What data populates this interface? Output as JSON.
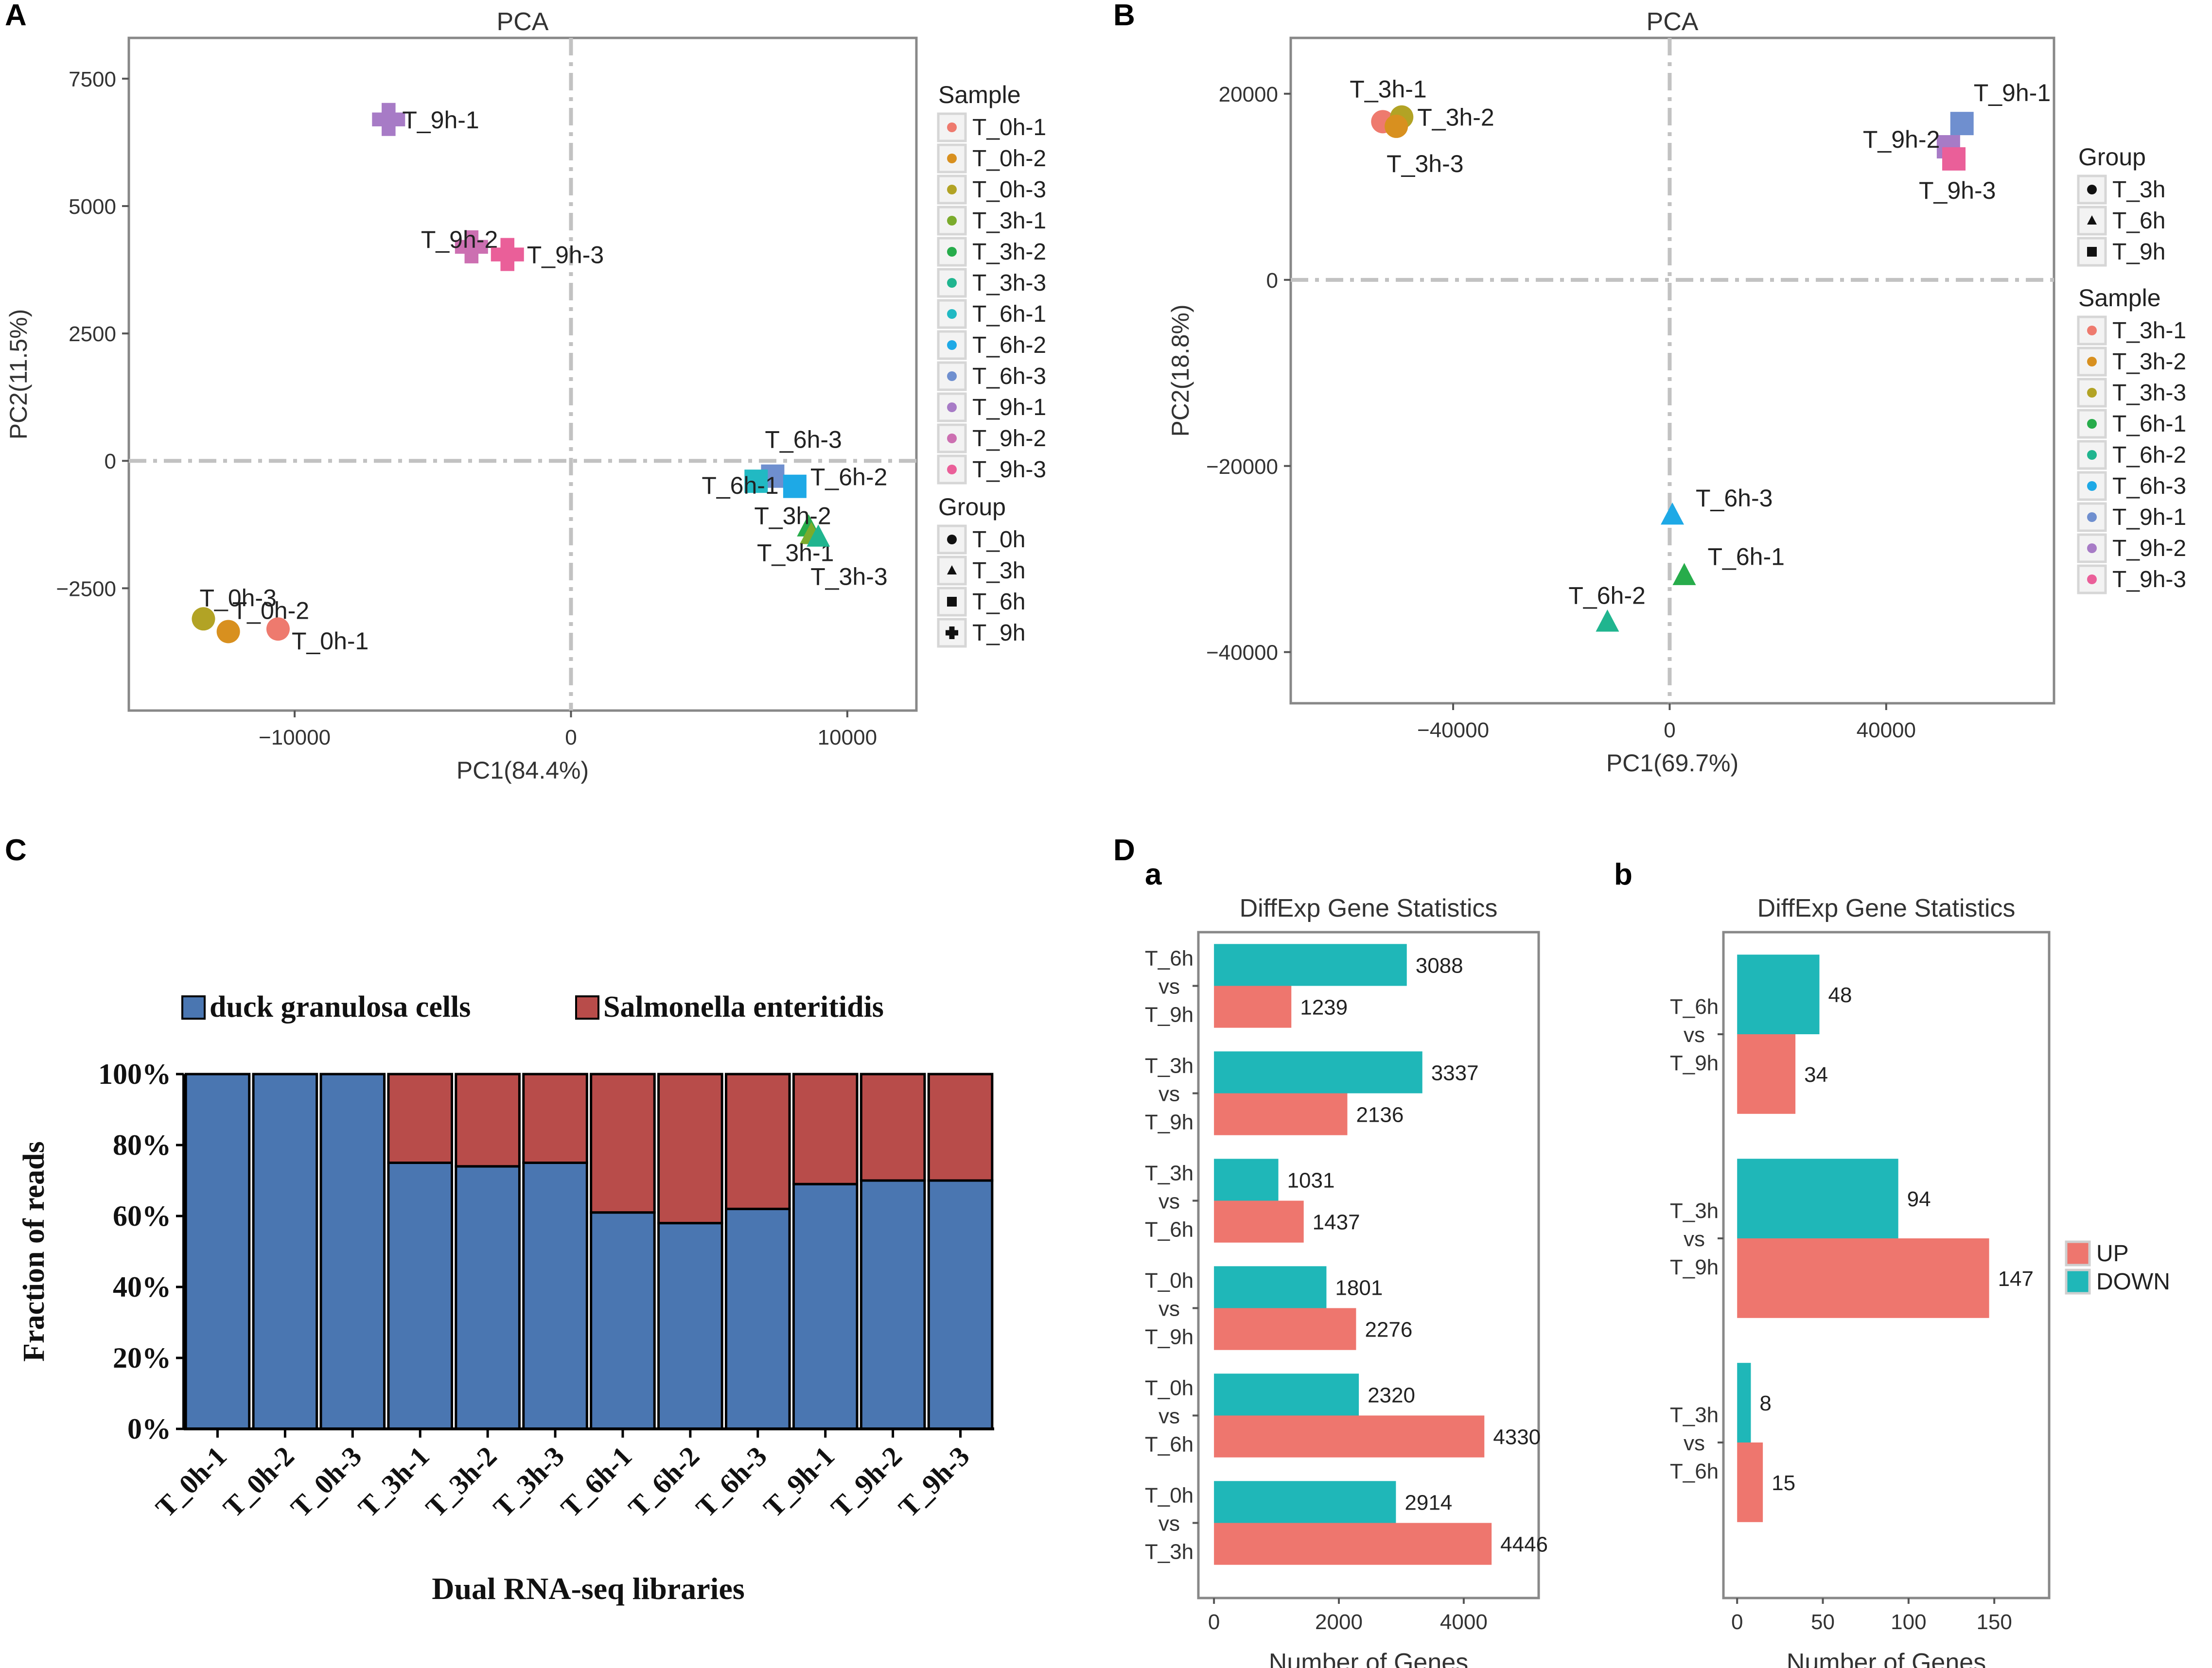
{
  "colors": {
    "T_0h-1": "#ee7a6e",
    "T_0h-2": "#d8901f",
    "T_0h-3": "#b2a325",
    "T_3h-1": "#7bab2c",
    "T_3h-2": "#27ac4b",
    "T_3h-3": "#20b58f",
    "T_6h-1": "#21b9c3",
    "T_6h-2": "#1ea9e6",
    "T_6h-3": "#6f8fcf",
    "T_9h-1": "#a77bc6",
    "T_9h-2": "#cc6fb1",
    "T_9h-3": "#ea5f99",
    "up": "#ee766e",
    "down": "#1fb7b8",
    "duck": "#4a76b1",
    "salmonella": "#b84c4a",
    "axis": "#888888",
    "refline": "#c2c2c2"
  },
  "chart_data": [
    {
      "panel": "A",
      "type": "scatter",
      "title": "PCA",
      "xlabel": "PC1(84.4%)",
      "ylabel": "PC2(11.5%)",
      "xlim": [
        -16000,
        12500
      ],
      "ylim": [
        -4900,
        8300
      ],
      "xticks": [
        -10000,
        0,
        10000
      ],
      "yticks": [
        -2500,
        0,
        2500,
        5000,
        7500
      ],
      "legend": {
        "sample_title": "Sample",
        "samples": [
          "T_0h-1",
          "T_0h-2",
          "T_0h-3",
          "T_3h-1",
          "T_3h-2",
          "T_3h-3",
          "T_6h-1",
          "T_6h-2",
          "T_6h-3",
          "T_9h-1",
          "T_9h-2",
          "T_9h-3"
        ],
        "group_title": "Group",
        "groups": [
          {
            "label": "T_0h",
            "shape": "circle"
          },
          {
            "label": "T_3h",
            "shape": "triangle"
          },
          {
            "label": "T_6h",
            "shape": "square"
          },
          {
            "label": "T_9h",
            "shape": "plus"
          }
        ]
      },
      "points": [
        {
          "label": "T_9h-1",
          "x": -6600,
          "y": 6700,
          "shape": "plus",
          "lx": 0.35,
          "ly": 0.0
        },
        {
          "label": "T_9h-2",
          "x": -3600,
          "y": 4200,
          "shape": "plus",
          "lx": -1.3,
          "ly": -0.2
        },
        {
          "label": "T_9h-3",
          "x": -2300,
          "y": 4050,
          "shape": "plus",
          "lx": 0.5,
          "ly": 0.0
        },
        {
          "label": "T_0h-3",
          "x": -13300,
          "y": -3100,
          "shape": "circle",
          "lx": -0.1,
          "ly": -0.55
        },
        {
          "label": "T_0h-2",
          "x": -12400,
          "y": -3350,
          "shape": "circle",
          "lx": 0.1,
          "ly": -0.55
        },
        {
          "label": "T_0h-1",
          "x": -10600,
          "y": -3300,
          "shape": "circle",
          "lx": 0.35,
          "ly": 0.3
        },
        {
          "label": "T_6h-3",
          "x": 7300,
          "y": -300,
          "shape": "square",
          "lx": -0.2,
          "ly": -0.95
        },
        {
          "label": "T_6h-1",
          "x": 6700,
          "y": -400,
          "shape": "square",
          "lx": -1.4,
          "ly": 0.1
        },
        {
          "label": "T_6h-2",
          "x": 8100,
          "y": -500,
          "shape": "square",
          "lx": 0.4,
          "ly": -0.25
        },
        {
          "label": "T_3h-2",
          "x": 8600,
          "y": -1300,
          "shape": "triangle",
          "lx": -1.4,
          "ly": -0.3
        },
        {
          "label": "T_3h-1",
          "x": 8700,
          "y": -1450,
          "shape": "triangle",
          "lx": -1.4,
          "ly": 0.45
        },
        {
          "label": "T_3h-3",
          "x": 8950,
          "y": -1500,
          "shape": "triangle",
          "lx": -0.2,
          "ly": 1.0
        }
      ]
    },
    {
      "panel": "B",
      "type": "scatter",
      "title": "PCA",
      "xlabel": "PC1(69.7%)",
      "ylabel": "PC2(18.8%)",
      "xlim": [
        -70000,
        71000
      ],
      "ylim": [
        -45500,
        26000
      ],
      "xticks": [
        -40000,
        0,
        40000
      ],
      "yticks": [
        -40000,
        -20000,
        0,
        20000
      ],
      "legend": {
        "group_title": "Group",
        "groups": [
          {
            "label": "T_3h",
            "shape": "circle"
          },
          {
            "label": "T_6h",
            "shape": "triangle"
          },
          {
            "label": "T_9h",
            "shape": "square"
          }
        ],
        "sample_title": "Sample",
        "samples": [
          "T_3h-1",
          "T_3h-2",
          "T_3h-3",
          "T_6h-1",
          "T_6h-2",
          "T_6h-3",
          "T_9h-1",
          "T_9h-2",
          "T_9h-3"
        ],
        "sample_color_keys": [
          "T_0h-1",
          "T_0h-2",
          "T_0h-3",
          "T_3h-2",
          "T_3h-3",
          "T_6h-2",
          "T_6h-3",
          "T_9h-1",
          "T_9h-3"
        ]
      },
      "points": [
        {
          "label": "T_3h-1",
          "x": -53000,
          "y": 17000,
          "shape": "circle",
          "color_key": "T_0h-1",
          "lx": -0.85,
          "ly": -0.85
        },
        {
          "label": "T_3h-2",
          "x": -49500,
          "y": 17500,
          "shape": "circle",
          "color_key": "T_0h-3",
          "lx": 0.4,
          "ly": 0.0
        },
        {
          "label": "T_3h-3",
          "x": -50500,
          "y": 16500,
          "shape": "circle",
          "color_key": "T_0h-2",
          "lx": -0.25,
          "ly": 0.95
        },
        {
          "label": "T_9h-1",
          "x": 54000,
          "y": 16800,
          "shape": "square",
          "color_key": "T_6h-3",
          "lx": 0.3,
          "ly": -0.8
        },
        {
          "label": "T_9h-2",
          "x": 51500,
          "y": 14300,
          "shape": "square",
          "color_key": "T_9h-1",
          "lx": -2.2,
          "ly": -0.2
        },
        {
          "label": "T_9h-3",
          "x": 52500,
          "y": 13000,
          "shape": "square",
          "color_key": "T_9h-3",
          "lx": -0.9,
          "ly": 0.8
        },
        {
          "label": "T_6h-3",
          "x": 500,
          "y": -25300,
          "shape": "triangle",
          "color_key": "T_6h-2",
          "lx": 0.6,
          "ly": -0.45
        },
        {
          "label": "T_6h-1",
          "x": 2700,
          "y": -31800,
          "shape": "triangle",
          "color_key": "T_3h-2",
          "lx": 0.6,
          "ly": -0.5
        },
        {
          "label": "T_6h-2",
          "x": -11500,
          "y": -36800,
          "shape": "triangle",
          "color_key": "T_3h-3",
          "lx": -1.0,
          "ly": -0.7
        }
      ]
    },
    {
      "panel": "C",
      "type": "bar",
      "stacked": true,
      "categories": [
        "T_0h-1",
        "T_0h-2",
        "T_0h-3",
        "T_3h-1",
        "T_3h-2",
        "T_3h-3",
        "T_6h-1",
        "T_6h-2",
        "T_6h-3",
        "T_9h-1",
        "T_9h-2",
        "T_9h-3"
      ],
      "series": [
        {
          "name": "duck granulosa cells",
          "color_key": "duck",
          "values": [
            100,
            100,
            100,
            75,
            74,
            75,
            61,
            58,
            62,
            69,
            70,
            70
          ]
        },
        {
          "name": "Salmonella enteritidis",
          "color_key": "salmonella",
          "values": [
            0,
            0,
            0,
            25,
            26,
            25,
            39,
            42,
            38,
            31,
            30,
            30
          ]
        }
      ],
      "ylabel": "Fraction of reads",
      "xlabel": "Dual RNA-seq libraries",
      "yticks": [
        "0%",
        "20%",
        "40%",
        "60%",
        "80%",
        "100%"
      ],
      "ylim": [
        0,
        100
      ]
    },
    {
      "panel": "Da",
      "type": "bar",
      "orientation": "horizontal",
      "title": "DiffExp Gene Statistics",
      "xlabel": "Number of Genes",
      "xlim": [
        -250,
        5200
      ],
      "xticks": [
        0,
        2000,
        4000
      ],
      "categories": [
        [
          "T_6h",
          "vs",
          "T_9h"
        ],
        [
          "T_3h",
          "vs",
          "T_9h"
        ],
        [
          "T_3h",
          "vs",
          "T_6h"
        ],
        [
          "T_0h",
          "vs",
          "T_9h"
        ],
        [
          "T_0h",
          "vs",
          "T_6h"
        ],
        [
          "T_0h",
          "vs",
          "T_3h"
        ]
      ],
      "series": [
        {
          "name": "DOWN",
          "color_key": "down",
          "values": [
            3088,
            3337,
            1031,
            1801,
            2320,
            2914
          ]
        },
        {
          "name": "UP",
          "color_key": "up",
          "values": [
            1239,
            2136,
            1437,
            2276,
            4330,
            4446
          ]
        }
      ]
    },
    {
      "panel": "Db",
      "type": "bar",
      "orientation": "horizontal",
      "title": "DiffExp Gene Statistics",
      "xlabel": "Number of Genes",
      "xlim": [
        -8,
        182
      ],
      "xticks": [
        0,
        50,
        100,
        150
      ],
      "categories": [
        [
          "T_6h",
          "vs",
          "T_9h"
        ],
        [
          "T_3h",
          "vs",
          "T_9h"
        ],
        [
          "T_3h",
          "vs",
          "T_6h"
        ]
      ],
      "series": [
        {
          "name": "DOWN",
          "color_key": "down",
          "values": [
            48,
            94,
            8
          ]
        },
        {
          "name": "UP",
          "color_key": "up",
          "values": [
            34,
            147,
            15
          ]
        }
      ],
      "legend": [
        {
          "label": "UP",
          "color_key": "up"
        },
        {
          "label": "DOWN",
          "color_key": "down"
        }
      ]
    }
  ],
  "panel_labels": {
    "A": "A",
    "B": "B",
    "C": "C",
    "D": "D",
    "Da": "a",
    "Db": "b"
  }
}
